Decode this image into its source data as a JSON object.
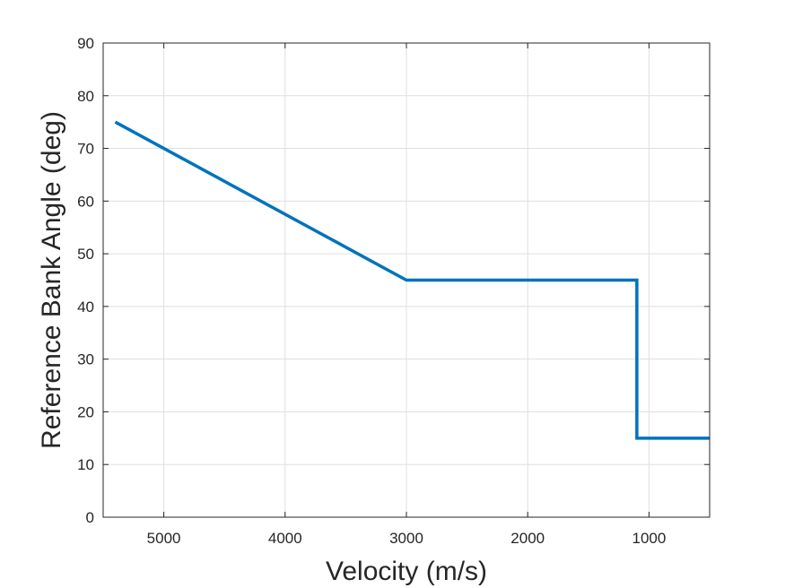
{
  "chart_data": {
    "type": "line",
    "title": "",
    "xlabel": "Velocity (m/s)",
    "ylabel": "Reference Bank Angle (deg)",
    "xlim": [
      5500,
      500
    ],
    "x_reversed": true,
    "ylim": [
      0,
      90
    ],
    "xticks": [
      5000,
      4000,
      3000,
      2000,
      1000
    ],
    "yticks": [
      0,
      10,
      20,
      30,
      40,
      50,
      60,
      70,
      80,
      90
    ],
    "grid": true,
    "series": [
      {
        "color": "#0072BD",
        "x": [
          5400,
          3000,
          1100,
          1100,
          500
        ],
        "y": [
          75,
          45,
          45,
          15,
          15
        ]
      }
    ]
  },
  "colors": {
    "axis": "#262626",
    "grid": "#dfdfdf",
    "line": "#0072BD"
  }
}
